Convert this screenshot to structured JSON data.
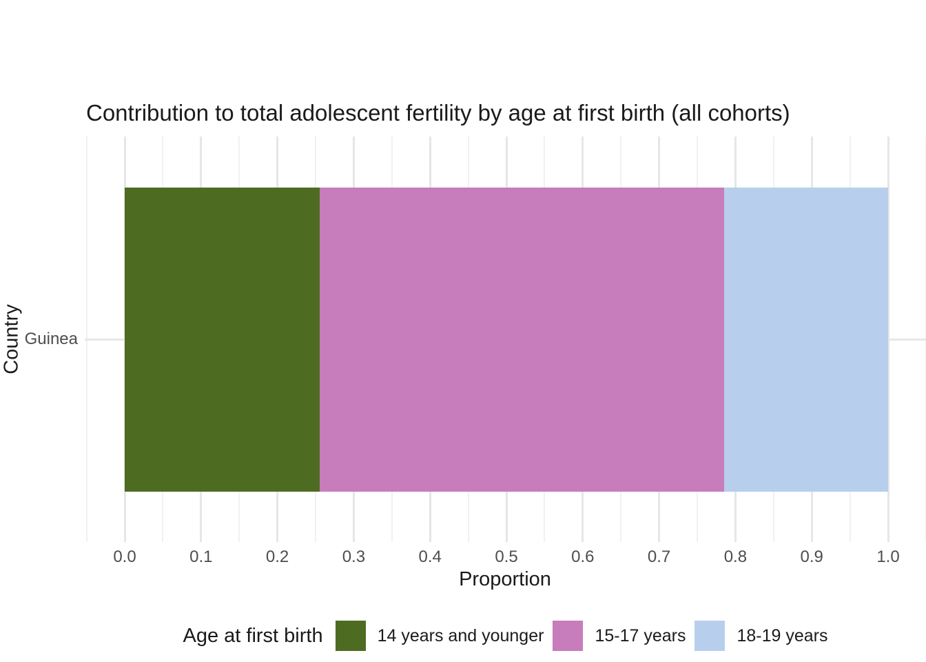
{
  "chart_data": {
    "type": "bar",
    "orientation": "horizontal",
    "stacked": true,
    "title": "Contribution to total adolescent fertility by age at first birth (all cohorts)",
    "xlabel": "Proportion",
    "ylabel": "Country",
    "categories": [
      "Guinea"
    ],
    "series": [
      {
        "name": "14 years and younger",
        "values": [
          0.255
        ],
        "color": "#4e6c21"
      },
      {
        "name": "15-17 years",
        "values": [
          0.53
        ],
        "color": "#c77cbb"
      },
      {
        "name": "18-19 years",
        "values": [
          0.215
        ],
        "color": "#b7cfec"
      }
    ],
    "xlim": [
      0,
      1
    ],
    "x_ticks": [
      "0.0",
      "0.1",
      "0.2",
      "0.3",
      "0.4",
      "0.5",
      "0.6",
      "0.7",
      "0.8",
      "0.9",
      "1.0"
    ],
    "x_minor_ticks": [
      -0.05,
      0.05,
      0.15,
      0.25,
      0.35,
      0.45,
      0.55,
      0.65,
      0.75,
      0.85,
      0.95,
      1.05
    ],
    "legend_title": "Age at first birth",
    "legend_position": "bottom",
    "grid": true,
    "axis_text_color": "#4d4d4d",
    "text_color": "#1a1a1a",
    "grid_major_color": "#e6e6e6",
    "grid_minor_color": "#f1f1f1"
  }
}
